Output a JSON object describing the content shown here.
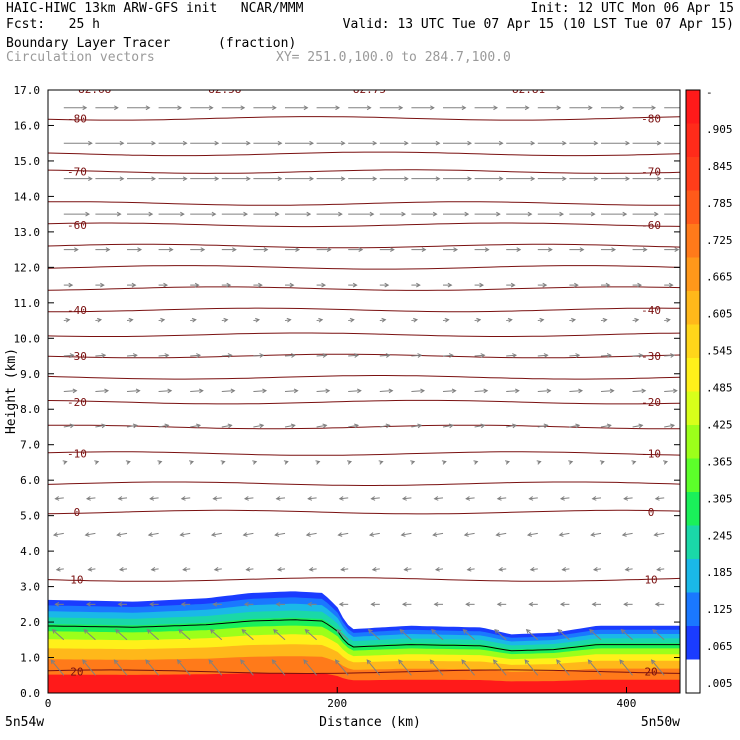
{
  "header": {
    "line1_left": "HAIC-HIWC 13km ARW-GFS init   NCAR/MMM",
    "line1_right": "Init: 12 UTC Mon 06 Apr 15",
    "line2_left": "Fcst:   25 h",
    "line2_right": "Valid: 13 UTC Tue 07 Apr 15 (10 LST Tue 07 Apr 15)",
    "line3_left": "Boundary Layer Tracer",
    "line3_units": "(fraction)",
    "line4_left": "Circulation vectors",
    "line4_xy": "XY= 251.0,100.0 to 284.7,100.0"
  },
  "chart_data": {
    "type": "heatmap",
    "xlabel": "Distance (km)",
    "ylabel": "Height (km)",
    "xlim": [
      0,
      437
    ],
    "ylim": [
      0,
      17
    ],
    "x_ticks": [
      "0",
      "200",
      "400"
    ],
    "x_tick_values": [
      0,
      200,
      400
    ],
    "y_ticks": [
      "0.0",
      "1.0",
      "2.0",
      "3.0",
      "4.0",
      "5.0",
      "6.0",
      "7.0",
      "8.0",
      "9.0",
      "10.0",
      "11.0",
      "12.0",
      "13.0",
      "14.0",
      "15.0",
      "16.0",
      "17.0"
    ],
    "x_endpoint_labels": [
      "5n54w",
      "5n50w"
    ],
    "colorbar": {
      "labels": [
        "-",
        ".905",
        ".845",
        ".785",
        ".725",
        ".665",
        ".605",
        ".545",
        ".485",
        ".425",
        ".365",
        ".305",
        ".245",
        ".185",
        ".125",
        ".065",
        ".005"
      ],
      "colors": [
        "#ff1a1a",
        "#ff2b1a",
        "#ff3d1a",
        "#ff5a1a",
        "#ff7a1a",
        "#ff981a",
        "#ffb81a",
        "#ffd61a",
        "#fff01a",
        "#d8ff1a",
        "#9cff1a",
        "#5cff2a",
        "#1af05a",
        "#1ad8a8",
        "#1ab8e8",
        "#1a78ff",
        "#1a3cff",
        "#ffffff"
      ]
    },
    "tracer_top_km": {
      "x": [
        0,
        60,
        110,
        140,
        170,
        190,
        200,
        205,
        210,
        250,
        300,
        320,
        350,
        380,
        400,
        437
      ],
      "y": [
        2.7,
        2.65,
        2.75,
        2.9,
        2.95,
        2.9,
        2.5,
        2.1,
        1.85,
        1.95,
        1.9,
        1.7,
        1.75,
        1.95,
        1.95,
        1.95
      ]
    },
    "tracer_levels": [
      {
        "value": 0.05,
        "color": "#1a3cff"
      },
      {
        "value": 0.15,
        "color": "#1a78ff"
      },
      {
        "value": 0.25,
        "color": "#1ab8e8"
      },
      {
        "value": 0.35,
        "color": "#1ad8a8"
      },
      {
        "value": 0.45,
        "color": "#1af05a"
      },
      {
        "value": 0.55,
        "color": "#9cff1a"
      },
      {
        "value": 0.65,
        "color": "#fff01a"
      },
      {
        "value": 0.75,
        "color": "#ffb81a"
      },
      {
        "value": 0.85,
        "color": "#ff7a1a"
      },
      {
        "value": 0.95,
        "color": "#ff1a1a"
      }
    ],
    "temperature_contours": [
      {
        "label": "-80",
        "height_km": 16.2
      },
      {
        "label": "-70",
        "height_km": 14.7
      },
      {
        "label": "-60",
        "height_km": 13.2
      },
      {
        "label": "-40",
        "height_km": 10.8
      },
      {
        "label": "-30",
        "height_km": 9.5
      },
      {
        "label": "-20",
        "height_km": 8.2
      },
      {
        "label": "-10",
        "height_km": 6.75
      },
      {
        "label": "0",
        "height_km": 5.1
      },
      {
        "label": "10",
        "height_km": 3.2
      },
      {
        "label": "20",
        "height_km": 0.6
      }
    ],
    "extra_contours_km": [
      15.2,
      13.8,
      12.6,
      12.0,
      11.4,
      10.1,
      8.9,
      7.5,
      5.9
    ],
    "top_labels": [
      "-82.68",
      "-82.58",
      "-82.75",
      "-82.81"
    ],
    "top_label_x_km": [
      30,
      120,
      220,
      330
    ],
    "contour_color": "#7a1010",
    "vector_color": "#808080",
    "wind_profile": {
      "height_km": [
        0.5,
        1.5,
        2.5,
        3.5,
        4.5,
        5.5,
        6.5,
        7.5,
        8.5,
        9.5,
        10.5,
        11.5,
        12.5,
        13.5,
        14.5,
        15.5,
        16.5
      ],
      "u": [
        -0.45,
        -0.4,
        -0.3,
        -0.25,
        -0.35,
        -0.3,
        0.1,
        0.35,
        0.45,
        0.35,
        0.2,
        0.3,
        0.5,
        0.9,
        1.0,
        1.0,
        0.8
      ],
      "w": [
        0.9,
        0.6,
        0.0,
        -0.05,
        -0.1,
        -0.05,
        0.05,
        0.1,
        0.05,
        0.05,
        0.05,
        0.0,
        0.0,
        0.0,
        0.0,
        0.0,
        0.0
      ]
    }
  }
}
